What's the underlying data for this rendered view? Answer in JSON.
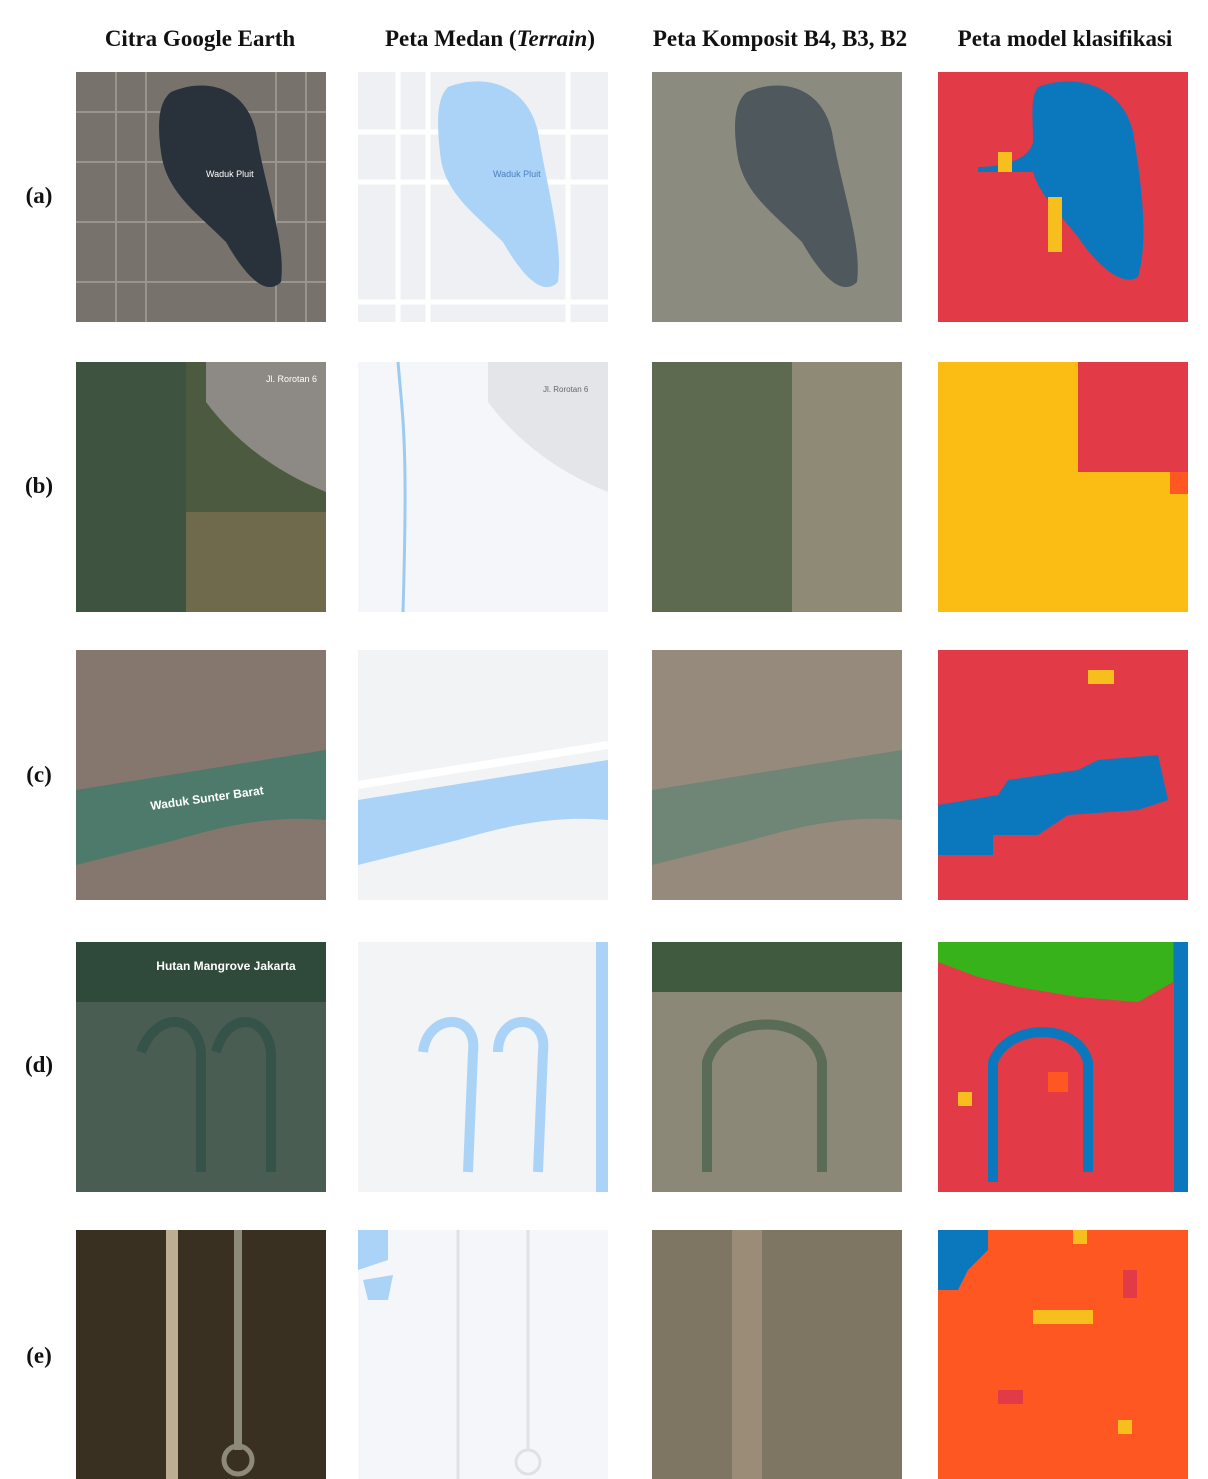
{
  "columns": [
    "Citra Google Earth",
    {
      "before": "Peta Medan (",
      "italic": "Terrain",
      "after": ")"
    },
    "Peta Komposit B4, B3, B2",
    "Peta model klasifikasi"
  ],
  "rows": [
    {
      "label": "(a)",
      "map_labels": [
        "Waduk Pluit",
        "Waduk Pluit"
      ]
    },
    {
      "label": "(b)",
      "map_labels": [
        "Jl. Rorotan 6",
        "Jl. Rorotan 6"
      ]
    },
    {
      "label": "(c)",
      "map_labels": [
        "Waduk Sunter Barat"
      ]
    },
    {
      "label": "(d)",
      "map_labels": [
        "Hutan Mangrove Jakarta"
      ]
    },
    {
      "label": "(e)"
    }
  ]
}
